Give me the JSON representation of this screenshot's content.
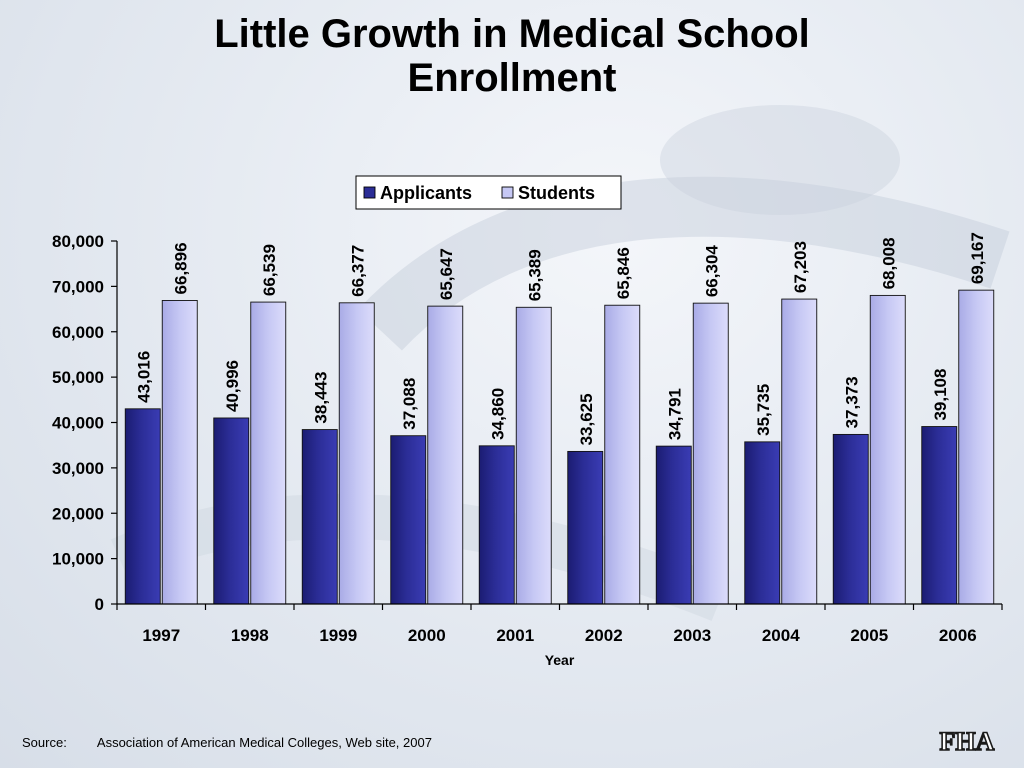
{
  "title_lines": [
    "Little Growth in Medical School",
    "Enrollment"
  ],
  "source": {
    "label": "Source:",
    "text": "Association of American Medical Colleges, Web site, 2007"
  },
  "logo": {
    "text": "FHA"
  },
  "colors": {
    "applicants": "#2b2d96",
    "students": "#c6c8f4",
    "axis": "#000000"
  },
  "chart_data": {
    "type": "bar",
    "categories": [
      "1997",
      "1998",
      "1999",
      "2000",
      "2001",
      "2002",
      "2003",
      "2004",
      "2005",
      "2006"
    ],
    "series": [
      {
        "name": "Applicants",
        "values": [
          43016,
          40996,
          38443,
          37088,
          34860,
          33625,
          34791,
          35735,
          37373,
          39108
        ],
        "labels": [
          "43,016",
          "40,996",
          "38,443",
          "37,088",
          "34,860",
          "33,625",
          "34,791",
          "35,735",
          "37,373",
          "39,108"
        ]
      },
      {
        "name": "Students",
        "values": [
          66896,
          66539,
          66377,
          65647,
          65389,
          65846,
          66304,
          67203,
          68008,
          69167
        ],
        "labels": [
          "66,896",
          "66,539",
          "66,377",
          "65,647",
          "65,389",
          "65,846",
          "66,304",
          "67,203",
          "68,008",
          "69,167"
        ]
      }
    ],
    "xlabel": "Year",
    "ylabel": "",
    "ylim": [
      0,
      80000
    ],
    "yticks": [
      0,
      10000,
      20000,
      30000,
      40000,
      50000,
      60000,
      70000,
      80000
    ],
    "ytick_labels": [
      "0",
      "10,000",
      "20,000",
      "30,000",
      "40,000",
      "50,000",
      "60,000",
      "70,000",
      "80,000"
    ],
    "legend_position": "top-center",
    "grid": false
  }
}
